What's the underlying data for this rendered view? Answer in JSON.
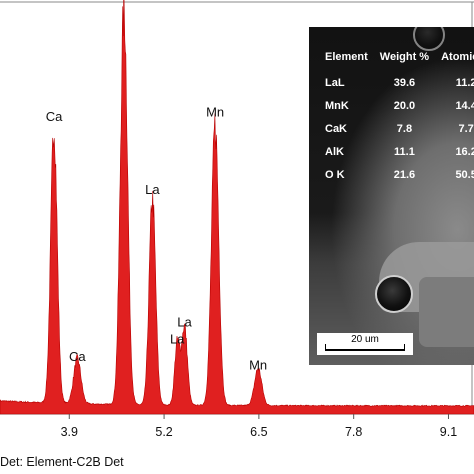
{
  "chart_data": {
    "type": "area",
    "title": "",
    "xlabel": "",
    "ylabel": "",
    "xlim": [
      2.95,
      9.45
    ],
    "ylim": [
      0,
      1.0
    ],
    "grid": false,
    "fill_color": "#e02020",
    "x_ticks": [
      "3.9",
      "5.2",
      "6.5",
      "7.8",
      "9.1"
    ],
    "x_tick_values": [
      3.9,
      5.2,
      6.5,
      7.8,
      9.1
    ],
    "peaks": [
      {
        "label": "Ca",
        "energy": 3.69,
        "height": 0.67,
        "width": 0.045
      },
      {
        "label": "Ca",
        "energy": 4.01,
        "height": 0.11,
        "width": 0.05
      },
      {
        "label": "La",
        "energy": 4.65,
        "height": 0.96,
        "width": 0.05
      },
      {
        "label": "La",
        "energy": 5.04,
        "height": 0.5,
        "width": 0.045
      },
      {
        "label": "La",
        "energy": 5.38,
        "height": 0.15,
        "width": 0.035
      },
      {
        "label": "La",
        "energy": 5.48,
        "height": 0.19,
        "width": 0.04
      },
      {
        "label": "Mn",
        "energy": 5.9,
        "height": 0.68,
        "width": 0.05
      },
      {
        "label": "Mn",
        "energy": 6.49,
        "height": 0.09,
        "width": 0.05
      }
    ],
    "baseline": 0.02
  },
  "inset": {
    "headers": [
      "Element",
      "Weight %",
      "Atomic %"
    ],
    "rows": [
      {
        "element": "LaL",
        "weight": "39.6",
        "atomic": "11.2"
      },
      {
        "element": "MnK",
        "weight": "20.0",
        "atomic": "14.4"
      },
      {
        "element": "CaK",
        "weight": "7.8",
        "atomic": "7.7"
      },
      {
        "element": "AlK",
        "weight": "11.1",
        "atomic": "16.2"
      },
      {
        "element": "O K",
        "weight": "21.6",
        "atomic": "50.5"
      }
    ],
    "scale_bar": "20 um"
  },
  "footer": "Det: Element-C2B Det"
}
